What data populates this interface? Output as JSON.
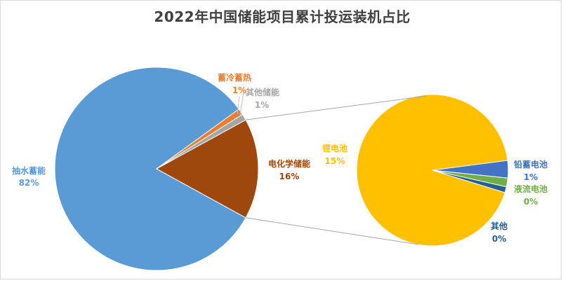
{
  "chart_data": {
    "type": "pie",
    "title": "2022年中国储能项目累计投运装机占比",
    "primary": {
      "slices": [
        {
          "name": "抽水蓄能",
          "label": "82%",
          "value": 82,
          "color": "#5b9bd5"
        },
        {
          "name": "蓄冷蓄热",
          "label": "1%",
          "value": 1,
          "color": "#ed7d31"
        },
        {
          "name": "其他储能",
          "label": "1%",
          "value": 1,
          "color": "#a5a5a5"
        },
        {
          "name": "电化学储能",
          "label": "16%",
          "value": 16,
          "color": "#9e480e"
        }
      ]
    },
    "secondary": {
      "slices": [
        {
          "name": "锂电池",
          "label": "15%",
          "value": 15,
          "color": "#ffc000"
        },
        {
          "name": "铅蓄电池",
          "label": "1%",
          "value": 0.6,
          "color": "#4472c4"
        },
        {
          "name": "液流电池",
          "label": "0%",
          "value": 0.3,
          "color": "#70ad47"
        },
        {
          "name": "其他",
          "label": "0%",
          "value": 0.2,
          "color": "#255e91"
        }
      ]
    }
  }
}
